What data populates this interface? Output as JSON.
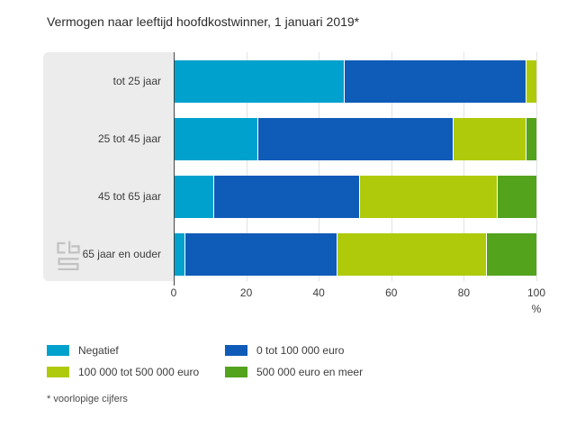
{
  "title": "Vermogen naar leeftijd hoofdkostwinner, 1 januari 2019*",
  "footnote": "* voorlopige cijfers",
  "axis": {
    "ticks": [
      0,
      20,
      40,
      60,
      80,
      100
    ],
    "unit": "%",
    "min": 0,
    "max": 100
  },
  "icons": {
    "panel_logo": "cbs-logo"
  },
  "chart_data": {
    "type": "bar",
    "orientation": "horizontal",
    "stacked": true,
    "title": "Vermogen naar leeftijd hoofdkostwinner, 1 januari 2019*",
    "categories": [
      "tot 25 jaar",
      "25 tot 45 jaar",
      "45 tot 65 jaar",
      "65 jaar en ouder"
    ],
    "series": [
      {
        "name": "Negatief",
        "color": "#00a1cd",
        "values": [
          47,
          23,
          11,
          3
        ]
      },
      {
        "name": "0 tot 100 000 euro",
        "color": "#0f5bb8",
        "values": [
          50,
          54,
          40,
          42
        ]
      },
      {
        "name": "100 000 tot 500 000 euro",
        "color": "#afca0b",
        "values": [
          3,
          20,
          38,
          41
        ]
      },
      {
        "name": "500 000 euro en meer",
        "color": "#53a31d",
        "values": [
          0,
          3,
          11,
          14
        ]
      }
    ],
    "xlabel": "%",
    "xlim": [
      0,
      100
    ],
    "grid": true,
    "legend_position": "bottom"
  }
}
